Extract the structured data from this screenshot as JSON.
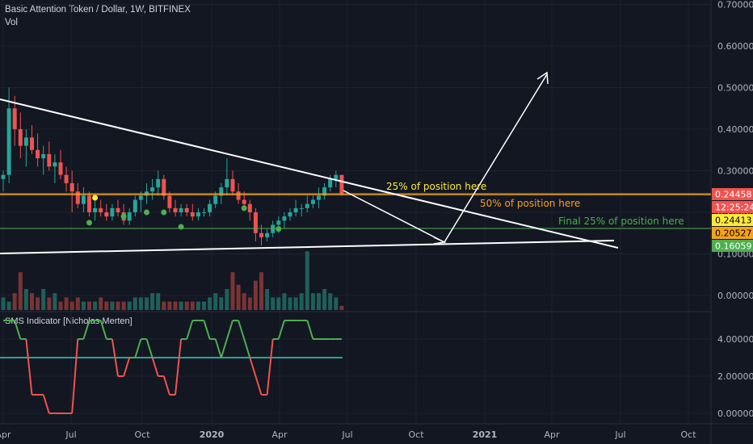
{
  "header": {
    "title": "Basic Attention Token / Dollar, 1W, BITFINEX",
    "sub": "Vol"
  },
  "indicator": {
    "title": "SMS Indicator [Nicholas Merten]"
  },
  "colors": {
    "background": "#131722",
    "grid": "#1e2230",
    "text": "#b2b5be",
    "up": "#26a69a",
    "down": "#ef5350",
    "trendline": "#ffffff",
    "line25": "#f7a21b",
    "line50": "#f7a21b",
    "lineFinal": "#4caf50",
    "signalGreen": "#4caf50",
    "signalRed": "#ef5350",
    "signalTeal": "#26a69a",
    "markerYellow": "#ffeb3b",
    "markerGreen": "#4caf50"
  },
  "annotations": {
    "a25": "25% of position here",
    "a50": "50% of position here",
    "afinal": "Final 25% of position here"
  },
  "price_labels": {
    "l1": "0.24458",
    "l2": "12:25:24",
    "l3": "0.24413",
    "l4": "0.20527",
    "l5": "0.16059"
  },
  "chart_data": {
    "type": "candlestick",
    "title": "Basic Attention Token / Dollar, 1W, BITFINEX",
    "ylim": [
      0,
      0.7
    ],
    "y_ticks": [
      "0.70000",
      "0.60000",
      "0.50000",
      "0.40000",
      "0.30000",
      "0.20000",
      "0.10000",
      "0.00000"
    ],
    "x_ticks": [
      "Apr",
      "Jul",
      "Oct",
      "2020",
      "Apr",
      "Jul",
      "Oct",
      "2021",
      "Apr",
      "Jul",
      "Oct"
    ],
    "ind_y_ticks": [
      "4.00000",
      "2.00000",
      "0.00000"
    ],
    "ind_ylim": [
      0,
      5
    ],
    "levels": [
      0.24458,
      0.20527,
      0.16059
    ],
    "candles": [
      [
        0.28,
        0.3,
        0.25,
        0.29
      ],
      [
        0.29,
        0.5,
        0.27,
        0.45
      ],
      [
        0.45,
        0.48,
        0.36,
        0.4
      ],
      [
        0.4,
        0.44,
        0.33,
        0.36
      ],
      [
        0.36,
        0.4,
        0.31,
        0.38
      ],
      [
        0.38,
        0.41,
        0.34,
        0.35
      ],
      [
        0.35,
        0.39,
        0.31,
        0.33
      ],
      [
        0.33,
        0.36,
        0.29,
        0.34
      ],
      [
        0.34,
        0.37,
        0.3,
        0.31
      ],
      [
        0.31,
        0.34,
        0.27,
        0.32
      ],
      [
        0.32,
        0.35,
        0.28,
        0.29
      ],
      [
        0.29,
        0.31,
        0.25,
        0.27
      ],
      [
        0.27,
        0.3,
        0.2,
        0.25
      ],
      [
        0.25,
        0.27,
        0.21,
        0.22
      ],
      [
        0.22,
        0.26,
        0.2,
        0.24
      ],
      [
        0.24,
        0.25,
        0.19,
        0.2
      ],
      [
        0.2,
        0.23,
        0.18,
        0.21
      ],
      [
        0.21,
        0.23,
        0.19,
        0.2
      ],
      [
        0.2,
        0.22,
        0.18,
        0.19
      ],
      [
        0.19,
        0.22,
        0.18,
        0.21
      ],
      [
        0.21,
        0.23,
        0.19,
        0.2
      ],
      [
        0.2,
        0.22,
        0.17,
        0.18
      ],
      [
        0.18,
        0.21,
        0.17,
        0.2
      ],
      [
        0.2,
        0.24,
        0.19,
        0.23
      ],
      [
        0.23,
        0.25,
        0.2,
        0.24
      ],
      [
        0.24,
        0.27,
        0.22,
        0.25
      ],
      [
        0.25,
        0.28,
        0.23,
        0.26
      ],
      [
        0.26,
        0.3,
        0.24,
        0.28
      ],
      [
        0.28,
        0.29,
        0.23,
        0.24
      ],
      [
        0.24,
        0.25,
        0.2,
        0.21
      ],
      [
        0.21,
        0.23,
        0.19,
        0.2
      ],
      [
        0.2,
        0.22,
        0.19,
        0.21
      ],
      [
        0.21,
        0.22,
        0.19,
        0.2
      ],
      [
        0.2,
        0.22,
        0.18,
        0.19
      ],
      [
        0.19,
        0.21,
        0.18,
        0.2
      ],
      [
        0.2,
        0.21,
        0.19,
        0.2
      ],
      [
        0.2,
        0.23,
        0.19,
        0.22
      ],
      [
        0.22,
        0.25,
        0.21,
        0.24
      ],
      [
        0.24,
        0.27,
        0.22,
        0.26
      ],
      [
        0.26,
        0.33,
        0.24,
        0.28
      ],
      [
        0.28,
        0.3,
        0.24,
        0.25
      ],
      [
        0.25,
        0.27,
        0.22,
        0.23
      ],
      [
        0.23,
        0.25,
        0.21,
        0.22
      ],
      [
        0.22,
        0.23,
        0.18,
        0.2
      ],
      [
        0.2,
        0.21,
        0.13,
        0.15
      ],
      [
        0.15,
        0.17,
        0.12,
        0.14
      ],
      [
        0.14,
        0.16,
        0.13,
        0.15
      ],
      [
        0.15,
        0.18,
        0.14,
        0.17
      ],
      [
        0.17,
        0.19,
        0.15,
        0.18
      ],
      [
        0.18,
        0.2,
        0.16,
        0.19
      ],
      [
        0.19,
        0.21,
        0.18,
        0.2
      ],
      [
        0.2,
        0.23,
        0.19,
        0.21
      ],
      [
        0.21,
        0.22,
        0.19,
        0.21
      ],
      [
        0.21,
        0.24,
        0.2,
        0.22
      ],
      [
        0.22,
        0.24,
        0.21,
        0.23
      ],
      [
        0.23,
        0.26,
        0.21,
        0.24
      ],
      [
        0.24,
        0.27,
        0.23,
        0.26
      ],
      [
        0.26,
        0.29,
        0.25,
        0.28
      ],
      [
        0.28,
        0.3,
        0.26,
        0.29
      ],
      [
        0.29,
        0.29,
        0.24,
        0.245
      ]
    ],
    "volume": [
      3,
      2,
      4,
      9,
      5,
      4,
      3,
      5,
      3,
      4,
      2,
      3,
      2,
      3,
      2,
      2,
      2,
      3,
      2,
      2,
      2,
      2,
      2,
      3,
      3,
      3,
      4,
      4,
      2,
      2,
      2,
      2,
      2,
      2,
      2,
      2,
      3,
      4,
      3,
      5,
      9,
      6,
      4,
      3,
      7,
      9,
      5,
      3,
      3,
      4,
      3,
      3,
      4,
      14,
      4,
      4,
      5,
      4,
      3,
      1
    ],
    "ind_green": [
      5,
      5,
      5,
      4,
      4,
      3,
      3,
      2,
      2,
      2,
      3,
      3,
      3,
      4,
      4,
      5,
      5,
      5,
      4,
      4,
      3,
      3,
      2,
      2,
      1,
      1,
      1,
      2,
      2,
      3,
      3,
      4,
      4,
      5,
      5,
      5,
      4,
      4,
      3,
      3,
      3,
      2,
      2,
      2,
      2,
      3,
      3,
      4,
      4,
      5,
      5,
      5,
      5,
      5,
      4,
      4,
      4,
      4,
      4,
      4
    ],
    "ind_red": [
      3,
      3,
      2,
      2,
      1,
      1,
      1,
      1,
      0,
      0,
      0,
      0,
      0,
      0,
      1,
      1,
      1,
      2,
      2,
      2,
      2,
      2,
      3,
      3,
      4,
      4,
      3,
      2,
      2,
      1,
      1,
      2,
      2,
      2,
      0,
      0,
      1,
      2,
      3,
      4,
      5,
      5,
      4,
      3,
      2,
      1,
      1,
      0,
      0,
      1,
      1,
      2,
      2,
      2,
      2,
      3,
      3,
      3,
      3,
      3
    ],
    "ind_baseline": 3.0,
    "markers": [
      {
        "type": "yellow",
        "idx": 16,
        "y": 0.235
      },
      {
        "type": "green",
        "idx": 15,
        "y": 0.175
      },
      {
        "type": "green",
        "idx": 21,
        "y": 0.19
      },
      {
        "type": "green",
        "idx": 25,
        "y": 0.2
      },
      {
        "type": "green",
        "idx": 28,
        "y": 0.2
      },
      {
        "type": "green",
        "idx": 31,
        "y": 0.165
      },
      {
        "type": "green",
        "idx": 42,
        "y": 0.21
      },
      {
        "type": "green",
        "idx": 48,
        "y": 0.16
      }
    ]
  }
}
